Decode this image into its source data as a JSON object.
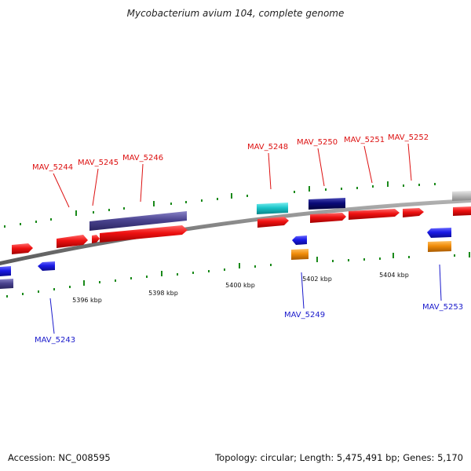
{
  "title": "Mycobacterium avium 104, complete genome",
  "footer": {
    "accession": "Accession: NC_008595",
    "stats": "Topology: circular; Length: 5,475,491 bp; Genes: 5,170"
  },
  "colors": {
    "forward_cds": "#ee1111",
    "reverse_cds": "#1a1ae6",
    "slate_feature": "#4b4490",
    "cyan_feature": "#19c4c8",
    "navy_feature": "#0a0a78",
    "orange_feature": "#f08c0a",
    "grey_feature": "#b8b8b8",
    "tick_color": "#1a8a1a",
    "backbone": "#8a8a8a",
    "forward_label": "#dd1111",
    "reverse_label": "#1a1acc"
  },
  "scale_labels": [
    "5396 kbp",
    "5398 kbp",
    "5400 kbp",
    "5402 kbp",
    "5404 kbp"
  ],
  "gene_labels": {
    "forward": [
      "MAV_5244",
      "MAV_5245",
      "MAV_5246",
      "MAV_5248",
      "MAV_5250",
      "MAV_5251",
      "MAV_5252"
    ],
    "reverse": [
      "MAV_5243",
      "MAV_5249",
      "MAV_5253"
    ]
  }
}
